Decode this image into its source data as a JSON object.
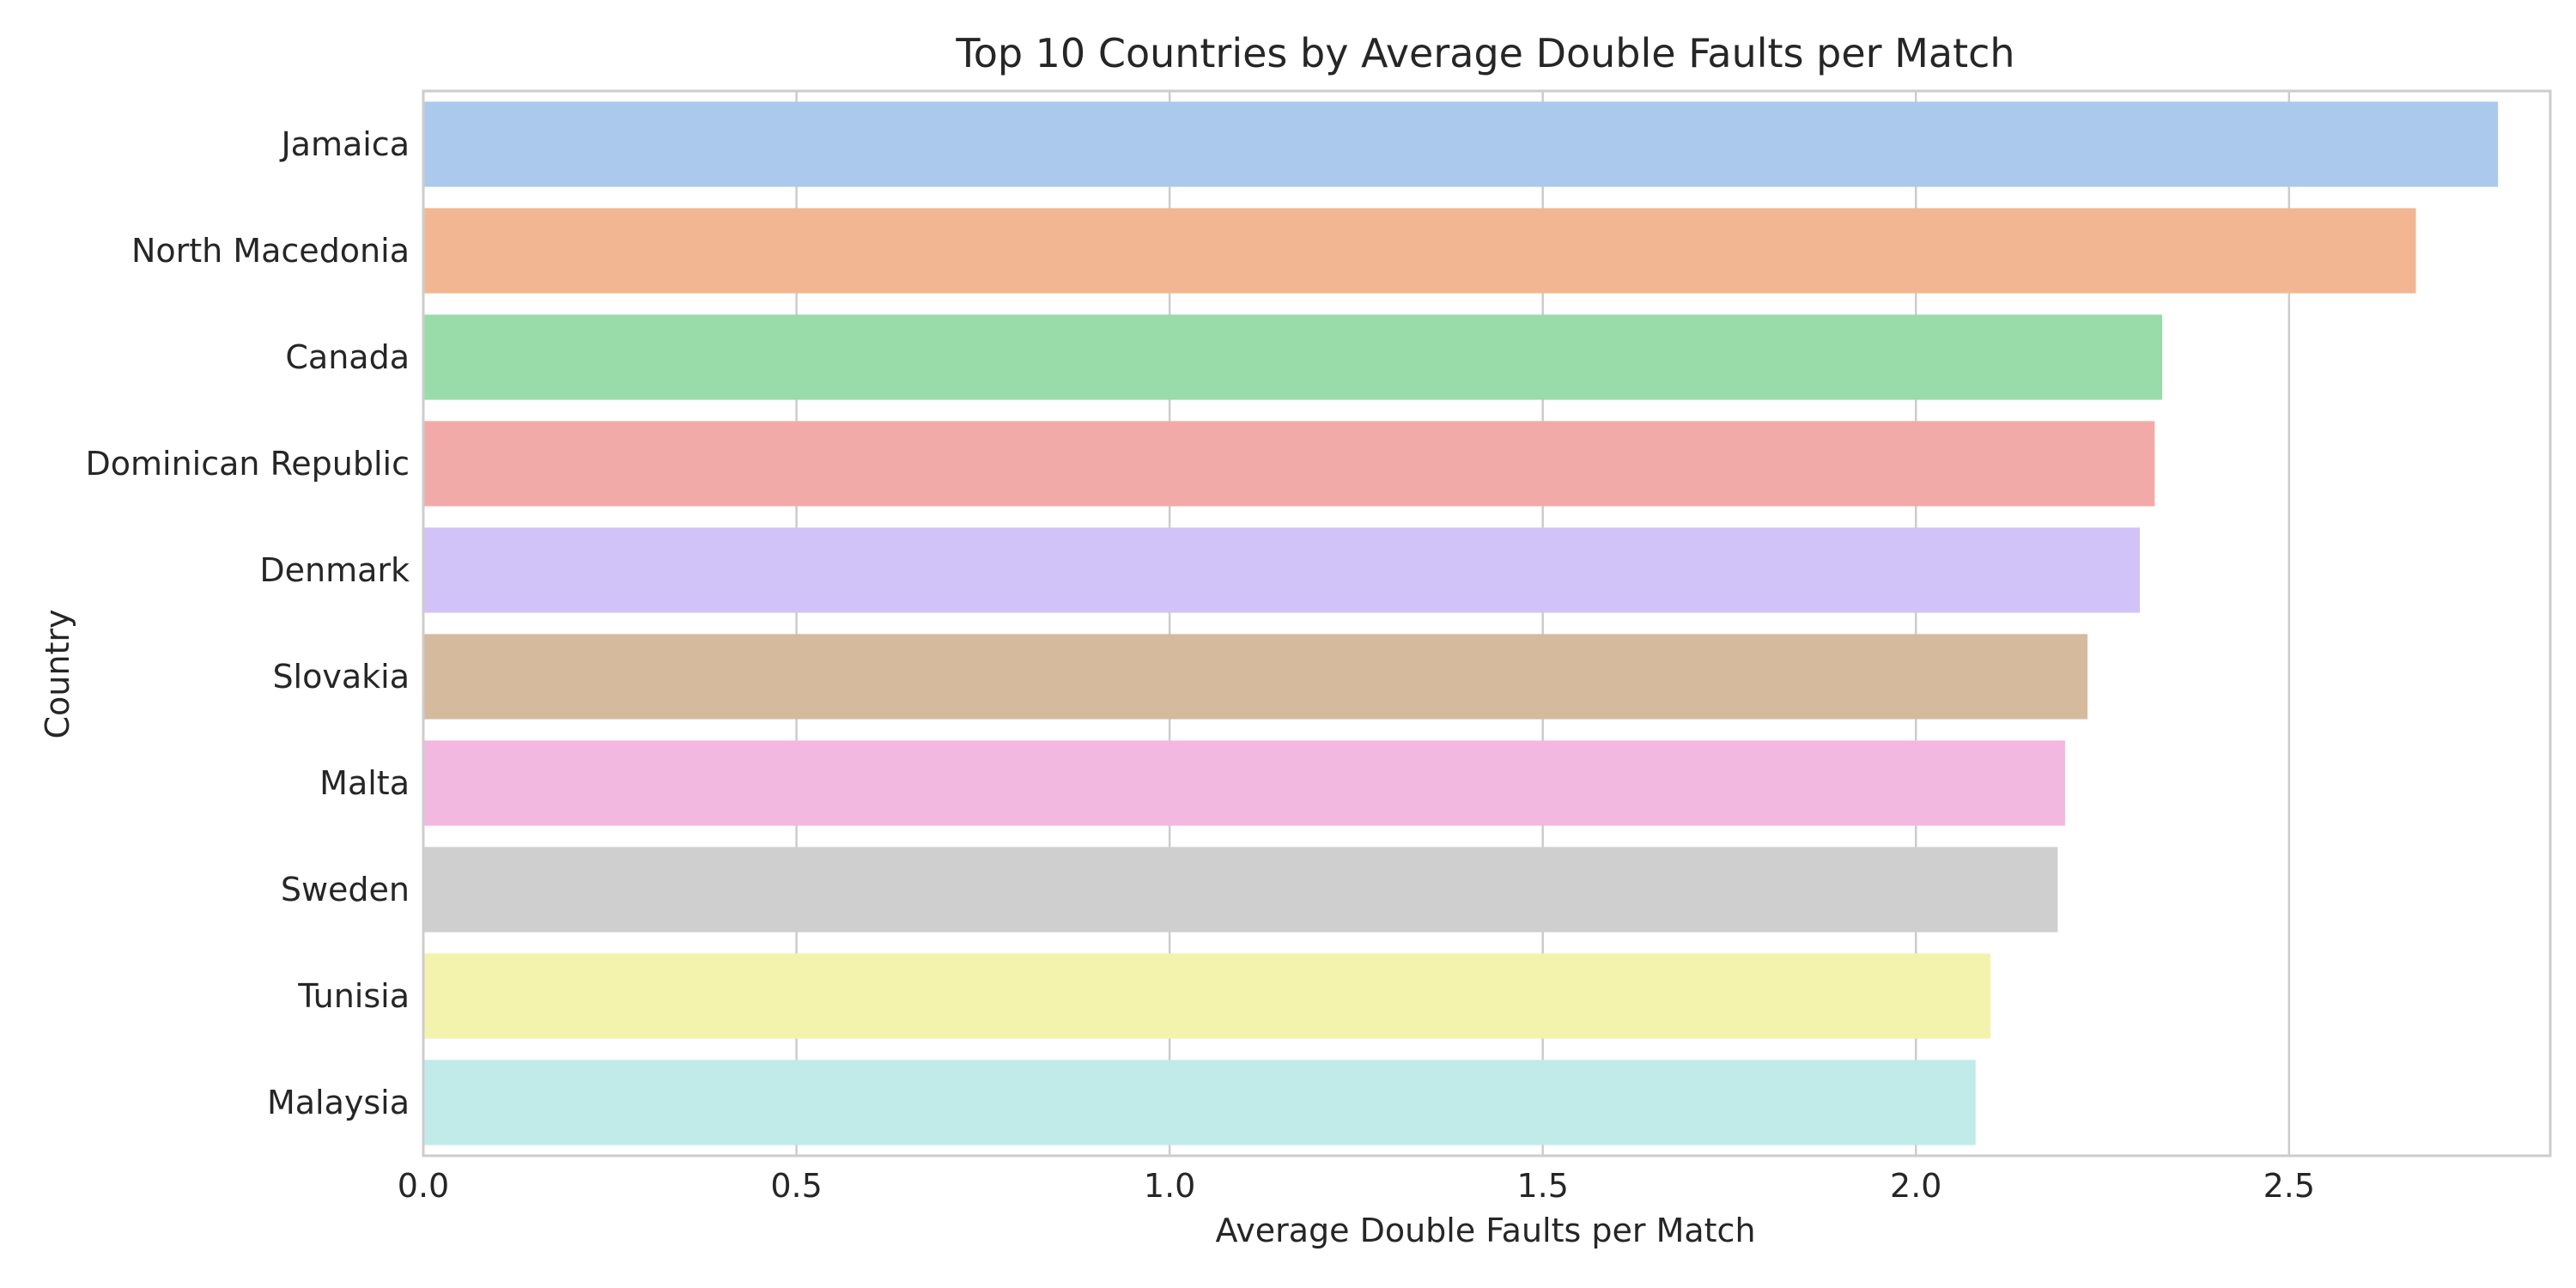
{
  "chart_data": {
    "type": "bar",
    "orientation": "horizontal",
    "title": "Top 10 Countries by Average Double Faults per Match",
    "xlabel": "Average Double Faults per Match",
    "ylabel": "Country",
    "xlim": [
      0,
      2.85
    ],
    "xticks": [
      0.0,
      0.5,
      1.0,
      1.5,
      2.0,
      2.5
    ],
    "xtick_labels": [
      "0.0",
      "0.5",
      "1.0",
      "1.5",
      "2.0",
      "2.5"
    ],
    "grid": true,
    "legend": "none",
    "categories": [
      "Jamaica",
      "North Macedonia",
      "Canada",
      "Dominican Republic",
      "Denmark",
      "Slovakia",
      "Malta",
      "Sweden",
      "Tunisia",
      "Malaysia"
    ],
    "values": [
      2.78,
      2.67,
      2.33,
      2.32,
      2.3,
      2.23,
      2.2,
      2.19,
      2.1,
      2.08
    ],
    "colors": [
      "#abc9ed",
      "#f2b792",
      "#99dba9",
      "#f2aaa8",
      "#d1c3f7",
      "#d6ba9e",
      "#f2b8e0",
      "#cfcfcf",
      "#f4f3ae",
      "#c0ebe8"
    ]
  }
}
